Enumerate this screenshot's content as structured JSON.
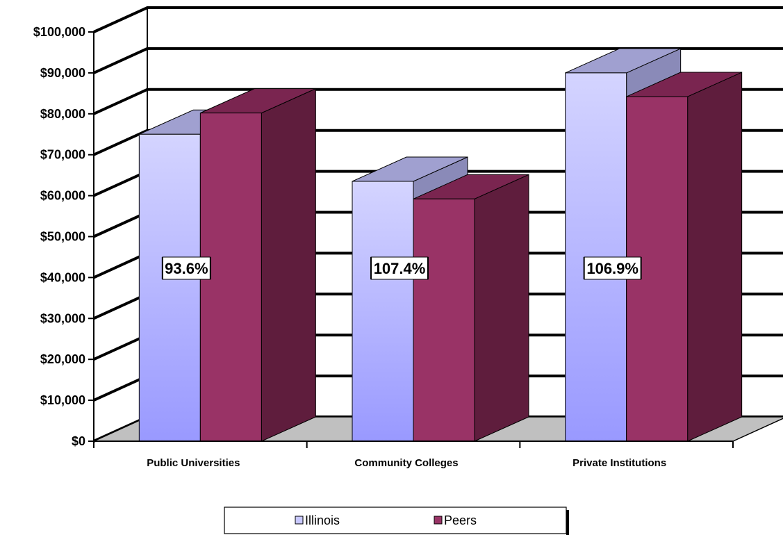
{
  "chart_data": {
    "type": "bar",
    "title": "",
    "xlabel": "",
    "ylabel": "",
    "categories": [
      "Public Universities",
      "Community Colleges",
      "Private Institutions"
    ],
    "series": [
      {
        "name": "Illinois",
        "values": [
          75000,
          63500,
          90000
        ],
        "color": "#c8c8ff"
      },
      {
        "name": "Peers",
        "values": [
          80200,
          59200,
          84200
        ],
        "color": "#993366"
      }
    ],
    "ylim": [
      0,
      100000
    ],
    "yticks": [
      0,
      10000,
      20000,
      30000,
      40000,
      50000,
      60000,
      70000,
      80000,
      90000,
      100000
    ],
    "ytick_labels": [
      "$0",
      "$10,000",
      "$20,000",
      "$30,000",
      "$40,000",
      "$50,000",
      "$60,000",
      "$70,000",
      "$80,000",
      "$90,000",
      "$100,000"
    ],
    "annotations": [
      "93.6%",
      "107.4%",
      "106.9%"
    ],
    "grid": true,
    "three_d": true,
    "legend": {
      "position": "bottom"
    }
  }
}
